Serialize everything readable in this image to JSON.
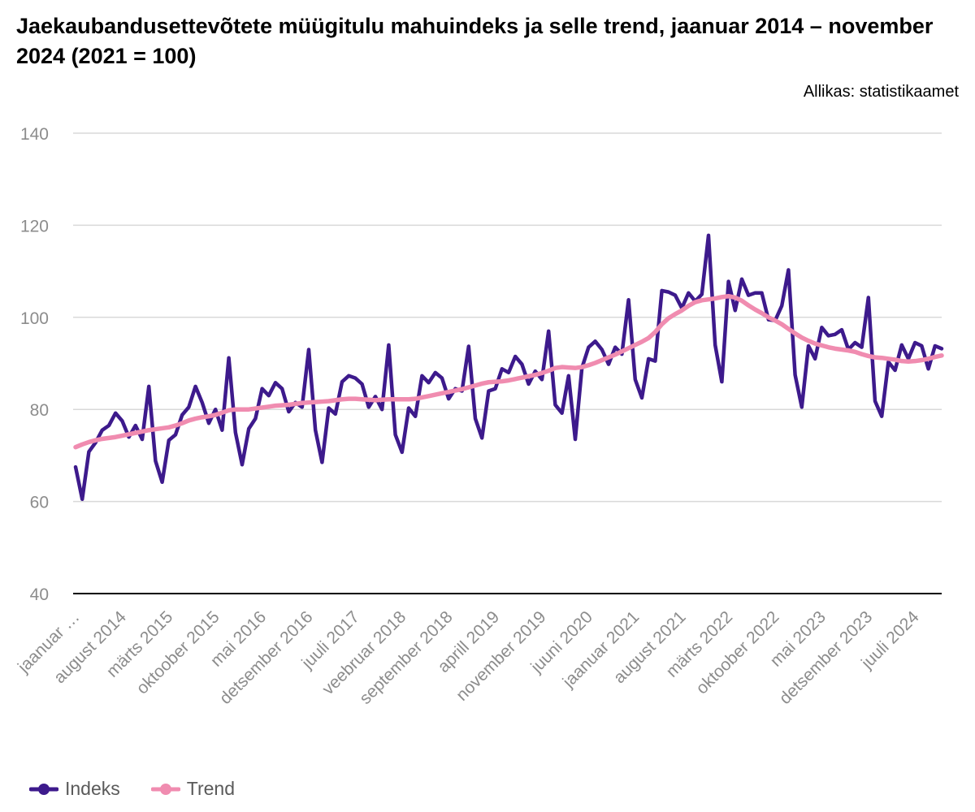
{
  "title": "Jaekaubandusettevõtete müügitulu mahuindeks ja selle trend, jaanuar 2014 – november 2024 (2021 = 100)",
  "source": "Allikas: statistikaamet",
  "colors": {
    "indeks": "#3d1a8c",
    "trend": "#f08cb0",
    "grid": "#d9d9d9",
    "axis": "#000000",
    "tick": "#8c8c8c"
  },
  "chart_data": {
    "type": "line",
    "xlabel": "",
    "ylabel": "",
    "ylim": [
      40,
      140
    ],
    "yticks": [
      40,
      60,
      80,
      100,
      120,
      140
    ],
    "grid": true,
    "legend_position": "bottom-left",
    "x_start": "2014-01",
    "x_end": "2024-11",
    "x_tick_labels": [
      {
        "index": 0,
        "label": "jaanuar …"
      },
      {
        "index": 7,
        "label": "august 2014"
      },
      {
        "index": 14,
        "label": "märts 2015"
      },
      {
        "index": 21,
        "label": "oktoober 2015"
      },
      {
        "index": 28,
        "label": "mai 2016"
      },
      {
        "index": 35,
        "label": "detsember 2016"
      },
      {
        "index": 42,
        "label": "juuli 2017"
      },
      {
        "index": 49,
        "label": "veebruar 2018"
      },
      {
        "index": 56,
        "label": "september 2018"
      },
      {
        "index": 63,
        "label": "aprill 2019"
      },
      {
        "index": 70,
        "label": "november 2019"
      },
      {
        "index": 77,
        "label": "juuni 2020"
      },
      {
        "index": 84,
        "label": "jaanuar 2021"
      },
      {
        "index": 91,
        "label": "august 2021"
      },
      {
        "index": 98,
        "label": "märts 2022"
      },
      {
        "index": 105,
        "label": "oktoober 2022"
      },
      {
        "index": 112,
        "label": "mai 2023"
      },
      {
        "index": 119,
        "label": "detsember 2023"
      },
      {
        "index": 126,
        "label": "juuli 2024"
      }
    ],
    "series": [
      {
        "name": "Indeks",
        "values": [
          67.5,
          60.5,
          70.8,
          72.8,
          75.5,
          76.5,
          79.2,
          77.5,
          74.0,
          76.5,
          73.5,
          85.0,
          68.8,
          64.2,
          73.3,
          74.5,
          78.8,
          80.5,
          85.0,
          81.5,
          77.0,
          80.0,
          75.5,
          91.2,
          75.0,
          68.0,
          75.8,
          78.0,
          84.5,
          83.0,
          85.8,
          84.5,
          79.5,
          81.5,
          80.5,
          93.0,
          75.5,
          68.5,
          80.3,
          79.0,
          86.0,
          87.3,
          86.8,
          85.5,
          80.5,
          82.8,
          80.0,
          94.0,
          74.5,
          70.7,
          80.3,
          78.5,
          87.3,
          85.8,
          88.0,
          86.8,
          82.3,
          84.5,
          84.0,
          93.7,
          78.0,
          73.8,
          84.0,
          84.5,
          88.8,
          88.0,
          91.5,
          89.8,
          85.5,
          88.3,
          86.5,
          97.0,
          81.0,
          79.2,
          87.3,
          73.5,
          89.0,
          93.5,
          94.8,
          93.0,
          89.8,
          93.5,
          92.0,
          103.8,
          86.5,
          82.5,
          91.0,
          90.5,
          105.8,
          105.5,
          104.8,
          102.0,
          105.3,
          103.5,
          105.0,
          117.8,
          94.0,
          86.0,
          107.8,
          101.5,
          108.3,
          104.8,
          105.3,
          105.3,
          99.5,
          99.3,
          102.5,
          110.3,
          87.5,
          80.5,
          93.8,
          91.0,
          97.8,
          96.0,
          96.3,
          97.3,
          93.0,
          94.5,
          93.5,
          104.3,
          81.8,
          78.5,
          90.3,
          88.5,
          94.0,
          91.0,
          94.5,
          93.8,
          88.8,
          93.8,
          93.2
        ]
      },
      {
        "name": "Trend",
        "values": [
          71.8,
          72.4,
          72.9,
          73.3,
          73.6,
          73.8,
          74.0,
          74.3,
          74.6,
          74.9,
          75.2,
          75.5,
          75.7,
          75.9,
          76.1,
          76.5,
          77.0,
          77.6,
          78.0,
          78.3,
          78.5,
          78.8,
          79.3,
          79.8,
          80.0,
          80.0,
          80.0,
          80.2,
          80.4,
          80.6,
          80.8,
          80.9,
          81.0,
          81.2,
          81.4,
          81.5,
          81.6,
          81.7,
          81.8,
          82.0,
          82.2,
          82.3,
          82.3,
          82.2,
          82.1,
          82.0,
          82.1,
          82.2,
          82.2,
          82.2,
          82.2,
          82.3,
          82.6,
          82.9,
          83.2,
          83.5,
          83.8,
          84.1,
          84.4,
          84.8,
          85.2,
          85.6,
          85.9,
          86.0,
          86.1,
          86.3,
          86.6,
          86.9,
          87.2,
          87.5,
          87.9,
          88.4,
          89.0,
          89.2,
          89.1,
          89.0,
          89.2,
          89.6,
          90.1,
          90.7,
          91.3,
          91.9,
          92.6,
          93.3,
          94.0,
          94.7,
          95.5,
          96.8,
          98.5,
          99.8,
          100.7,
          101.5,
          102.5,
          103.3,
          103.7,
          103.9,
          104.1,
          104.4,
          104.6,
          104.3,
          103.6,
          102.6,
          101.7,
          100.9,
          100.0,
          99.3,
          98.5,
          97.5,
          96.5,
          95.6,
          94.9,
          94.3,
          93.9,
          93.5,
          93.2,
          93.0,
          92.8,
          92.5,
          92.0,
          91.6,
          91.3,
          91.2,
          91.0,
          90.8,
          90.5,
          90.4,
          90.5,
          90.7,
          91.0,
          91.4,
          91.7
        ]
      }
    ]
  }
}
